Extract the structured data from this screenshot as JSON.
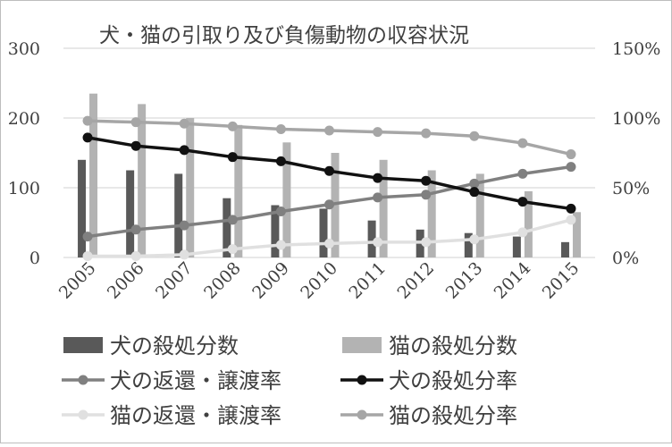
{
  "chart_data": {
    "type": "bar",
    "title": "犬・猫の引取り及び負傷動物の収容状況",
    "categories": [
      "2005",
      "2006",
      "2007",
      "2008",
      "2009",
      "2010",
      "2011",
      "2012",
      "2013",
      "2014",
      "2015"
    ],
    "y_left": {
      "ylim": [
        0,
        300
      ],
      "ticks": [
        "0",
        "100",
        "200",
        "300"
      ],
      "tick_values": [
        0,
        100,
        200,
        300
      ]
    },
    "y_right": {
      "ylim": [
        0,
        150
      ],
      "ticks": [
        "0%",
        "50%",
        "100%",
        "150%"
      ],
      "tick_values": [
        0,
        50,
        100,
        150
      ]
    },
    "grid": true,
    "legend_position": "bottom",
    "series": [
      {
        "name": "犬の殺処分数",
        "kind": "bar",
        "axis": "left",
        "color": "#595959",
        "values": [
          140,
          125,
          120,
          85,
          75,
          70,
          53,
          40,
          35,
          30,
          22
        ]
      },
      {
        "name": "猫の殺処分数",
        "kind": "bar",
        "axis": "left",
        "color": "#b3b3b3",
        "values": [
          235,
          220,
          200,
          190,
          165,
          150,
          140,
          125,
          120,
          95,
          65
        ]
      },
      {
        "name": "犬の返還・譲渡率",
        "kind": "line",
        "axis": "right",
        "color": "#808080",
        "values": [
          15,
          20,
          23,
          27,
          33,
          38,
          43,
          45,
          53,
          60,
          65
        ]
      },
      {
        "name": "犬の殺処分率",
        "kind": "line",
        "axis": "right",
        "color": "#111111",
        "values": [
          86,
          80,
          77,
          72,
          69,
          62,
          57,
          55,
          47,
          40,
          35
        ]
      },
      {
        "name": "猫の返還・譲渡率",
        "kind": "line",
        "axis": "right",
        "color": "#e0e0e0",
        "values": [
          1,
          1,
          2,
          6,
          9,
          10,
          11,
          11,
          13,
          18,
          27
        ]
      },
      {
        "name": "猫の殺処分率",
        "kind": "line",
        "axis": "right",
        "color": "#a6a6a6",
        "values": [
          98,
          97,
          96,
          94,
          92,
          91,
          90,
          89,
          87,
          82,
          74
        ]
      }
    ]
  }
}
